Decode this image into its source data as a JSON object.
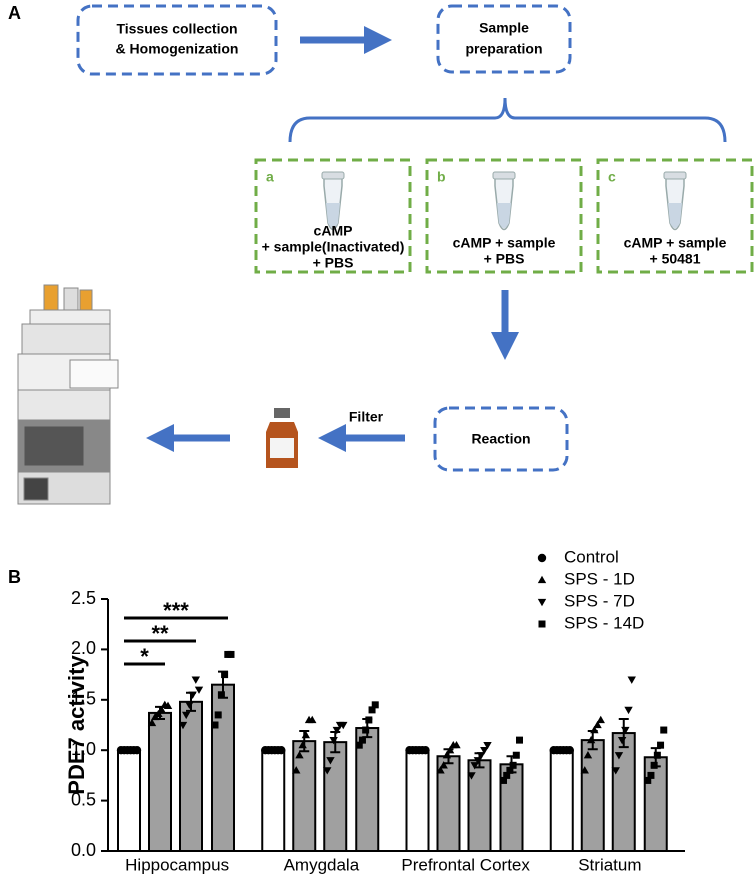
{
  "panel_a": {
    "label": "A",
    "step1": [
      "Tissues collection",
      "& Homogenization"
    ],
    "step2": [
      "Sample",
      "preparation"
    ],
    "conditions": [
      {
        "letter": "a",
        "lines": [
          "cAMP",
          "+ sample(Inactivated)",
          "+ PBS"
        ]
      },
      {
        "letter": "b",
        "lines": [
          "cAMP + sample",
          "+ PBS"
        ]
      },
      {
        "letter": "c",
        "lines": [
          "cAMP + sample",
          "+ 50481"
        ]
      }
    ],
    "reaction": "Reaction",
    "filter": "Filter"
  },
  "chart_data": {
    "type": "bar",
    "panel_label": "B",
    "ylabel": "PDE7 activity",
    "categories": [
      "Hippocampus",
      "Amygdala",
      "Prefrontal Cortex",
      "Striatum"
    ],
    "ylim": [
      0,
      2.5
    ],
    "yticks": [
      {
        "value": 0,
        "label": "0.0"
      },
      {
        "value": 0.5,
        "label": "0.5"
      },
      {
        "value": 1,
        "label": "1.0"
      },
      {
        "value": 1.5,
        "label": "1.5"
      },
      {
        "value": 2,
        "label": "2.0"
      },
      {
        "value": 2.5,
        "label": "2.5"
      }
    ],
    "legend": "top-right",
    "series": [
      {
        "name": "Control",
        "color": "#ffffff",
        "marker": "circle",
        "values": [
          1,
          1,
          1,
          1
        ],
        "errors": [
          0,
          0,
          0,
          0
        ],
        "points": [
          [
            1,
            1,
            1,
            1,
            1,
            1
          ],
          [
            1,
            1,
            1,
            1,
            1,
            1
          ],
          [
            1,
            1,
            1,
            1,
            1,
            1
          ],
          [
            1,
            1,
            1,
            1,
            1,
            1
          ]
        ]
      },
      {
        "name": "SPS - 1D",
        "color": "#a0a0a0",
        "marker": "triangle-up",
        "values": [
          1.37,
          1.09,
          0.94,
          1.1
        ],
        "errors": [
          0.06,
          0.1,
          0.07,
          0.09
        ],
        "points": [
          [
            1.27,
            1.33,
            1.36,
            1.4,
            1.45,
            1.44
          ],
          [
            0.8,
            0.95,
            1.05,
            1.15,
            1.3,
            1.3
          ],
          [
            0.8,
            0.85,
            0.95,
            1.0,
            1.05,
            1.05
          ],
          [
            0.8,
            0.95,
            1.1,
            1.2,
            1.25,
            1.3
          ]
        ]
      },
      {
        "name": "SPS - 7D",
        "color": "#a0a0a0",
        "marker": "triangle-down",
        "values": [
          1.48,
          1.08,
          0.9,
          1.17
        ],
        "errors": [
          0.09,
          0.1,
          0.07,
          0.14
        ],
        "points": [
          [
            1.25,
            1.35,
            1.45,
            1.55,
            1.7,
            1.6
          ],
          [
            0.8,
            0.9,
            1.1,
            1.2,
            1.25,
            1.25
          ],
          [
            0.75,
            0.85,
            0.9,
            0.95,
            1.0,
            1.05
          ],
          [
            0.8,
            0.95,
            1.1,
            1.2,
            1.4,
            1.7
          ]
        ]
      },
      {
        "name": "SPS - 14D",
        "color": "#a0a0a0",
        "marker": "square",
        "values": [
          1.65,
          1.22,
          0.86,
          0.93
        ],
        "errors": [
          0.13,
          0.09,
          0.08,
          0.09
        ],
        "points": [
          [
            1.25,
            1.35,
            1.55,
            1.75,
            1.95,
            1.95
          ],
          [
            1.05,
            1.1,
            1.2,
            1.3,
            1.4,
            1.45
          ],
          [
            0.7,
            0.75,
            0.8,
            0.85,
            0.95,
            1.1
          ],
          [
            0.7,
            0.75,
            0.85,
            0.95,
            1.05,
            1.2
          ]
        ]
      }
    ],
    "annotations": [
      "*",
      "**",
      "***"
    ]
  }
}
